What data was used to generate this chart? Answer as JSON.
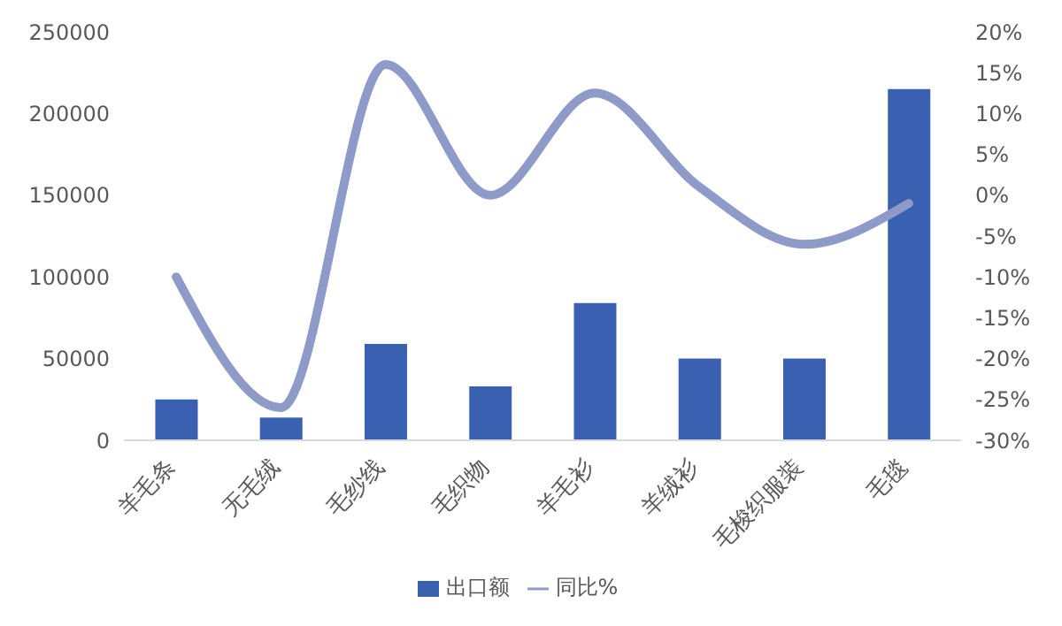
{
  "chart_data": {
    "type": "bar",
    "categories": [
      "羊毛条",
      "无毛绒",
      "毛纱线",
      "毛织物",
      "羊毛衫",
      "羊绒衫",
      "毛梭织服装",
      "毛毯"
    ],
    "series": [
      {
        "name": "出口额",
        "color": "#3a60b2",
        "values": [
          25000,
          14000,
          59000,
          33000,
          84000,
          50000,
          50000,
          215000
        ]
      },
      {
        "name": "同比%",
        "type": "line",
        "axis": "y2",
        "color": "#8e9bc9",
        "values": [
          -10,
          -26,
          16,
          0,
          12.5,
          1,
          -6,
          -1
        ]
      }
    ],
    "ylim": [
      0,
      250000
    ],
    "yticks": [
      0,
      50000,
      100000,
      150000,
      200000,
      250000
    ],
    "y2lim": [
      -30,
      20
    ],
    "y2ticks": [
      {
        "value": -30,
        "label": "-30%"
      },
      {
        "value": -25,
        "label": "-25%"
      },
      {
        "value": -20,
        "label": "-20%"
      },
      {
        "value": -15,
        "label": "-15%"
      },
      {
        "value": -10,
        "label": "-10%"
      },
      {
        "value": -5,
        "label": "-5%"
      },
      {
        "value": 0,
        "label": "0%"
      },
      {
        "value": 5,
        "label": "5%"
      },
      {
        "value": 10,
        "label": "10%"
      },
      {
        "value": 15,
        "label": "15%"
      },
      {
        "value": 20,
        "label": "20%"
      }
    ],
    "grid": false,
    "legend": "bottom",
    "marker": "none"
  }
}
